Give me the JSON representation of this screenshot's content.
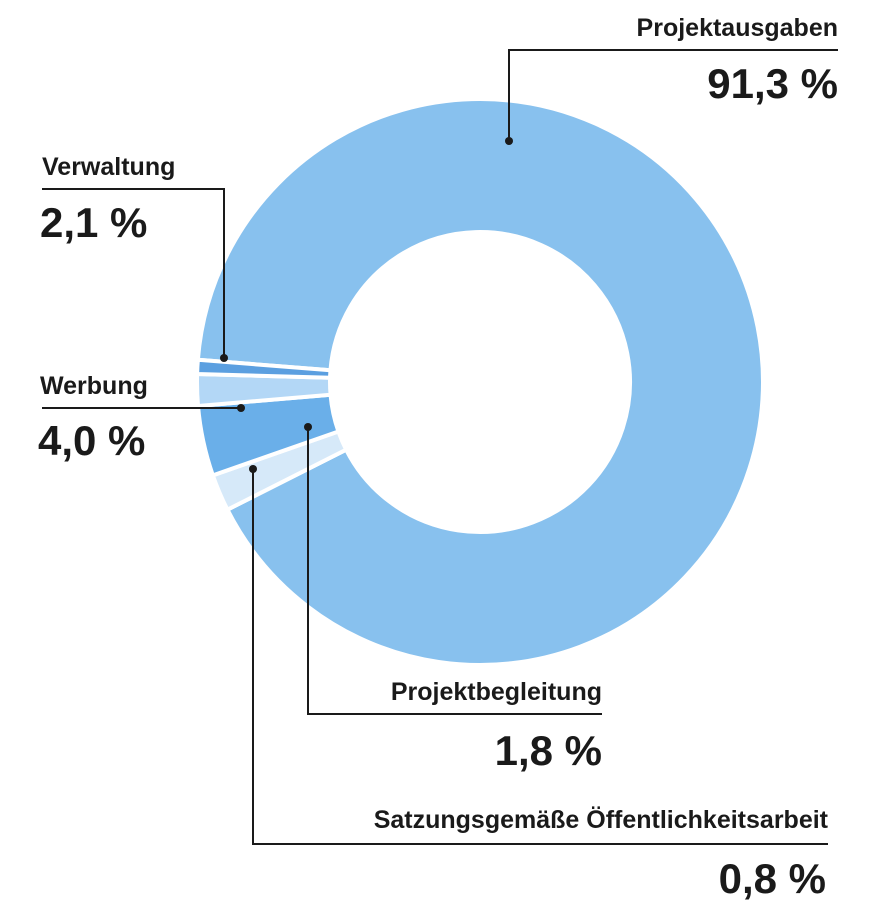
{
  "chart_data": {
    "type": "pie",
    "donut": true,
    "slices": [
      {
        "label": "Projektausgaben",
        "value": 91.3,
        "value_label": "91,3 %",
        "color": "#88c1ee"
      },
      {
        "label": "Verwaltung",
        "value": 2.1,
        "value_label": "2,1 %",
        "color": "#d6e9f9"
      },
      {
        "label": "Werbung",
        "value": 4.0,
        "value_label": "4,0 %",
        "color": "#6aafe9"
      },
      {
        "label": "Projektbegleitung",
        "value": 1.8,
        "value_label": "1,8 %",
        "color": "#b3d7f6"
      },
      {
        "label": "Satzungsgemäße Öffentlichkeitsarbeit",
        "value": 0.8,
        "value_label": "0,8 %",
        "color": "#5b9fe0"
      }
    ]
  }
}
